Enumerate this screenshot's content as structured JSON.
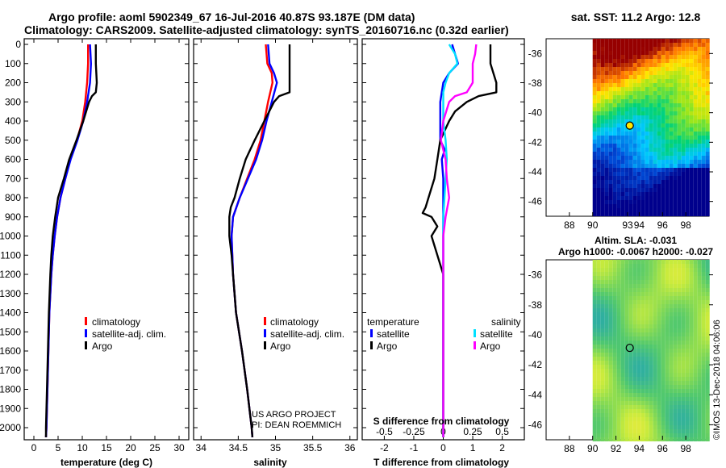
{
  "title_line1": "Argo profile: aoml 5902349_67 16-Jul-2016 40.87S 93.187E (DM data)",
  "title_line2": "Climatology: CARS2009. Satellite-adjusted climatology: synTS_20160716.nc (0.32d earlier)",
  "depth_ticks": [
    "0",
    "100",
    "200",
    "300",
    "400",
    "500",
    "600",
    "700",
    "800",
    "900",
    "1000",
    "1100",
    "1200",
    "1300",
    "1400",
    "1500",
    "1600",
    "1700",
    "1800",
    "1900",
    "2000"
  ],
  "colors": {
    "climatology": "#ff0000",
    "satellite": "#0000ff",
    "argo": "#000000",
    "salinity_sat": "#00e0ff",
    "salinity_argo": "#ff00ff"
  },
  "chart_data": [
    {
      "type": "line",
      "name": "temperature",
      "xlabel": "temperature (deg C)",
      "xlim": [
        -2,
        32
      ],
      "ylim": [
        0,
        2050
      ],
      "x_ticks": [
        "0",
        "5",
        "10",
        "15",
        "20",
        "25",
        "30"
      ],
      "legend": [
        "climatology",
        "satellite-adj. clim.",
        "Argo"
      ],
      "series": [
        {
          "name": "climatology",
          "depth": [
            0,
            50,
            100,
            200,
            300,
            400,
            500,
            600,
            700,
            800,
            900,
            1000,
            1100,
            1200,
            1400,
            1600,
            1800,
            2000,
            2050
          ],
          "values": [
            11.2,
            11.2,
            11.2,
            11.0,
            10.6,
            10.0,
            8.9,
            7.5,
            6.5,
            5.5,
            4.8,
            4.3,
            3.9,
            3.6,
            3.2,
            3.0,
            2.8,
            2.6,
            2.5
          ]
        },
        {
          "name": "satellite-adj. clim.",
          "depth": [
            0,
            50,
            100,
            200,
            300,
            400,
            500,
            600,
            700,
            800,
            900,
            1000,
            1100,
            1200,
            1400,
            1600,
            1800,
            2000,
            2050
          ],
          "values": [
            11.6,
            11.7,
            11.8,
            11.6,
            11.0,
            10.2,
            9.0,
            7.6,
            6.5,
            5.5,
            4.8,
            4.3,
            3.9,
            3.6,
            3.2,
            3.0,
            2.8,
            2.6,
            2.5
          ]
        },
        {
          "name": "Argo",
          "depth": [
            0,
            50,
            100,
            200,
            250,
            270,
            300,
            350,
            400,
            500,
            600,
            700,
            800,
            900,
            1000,
            1100,
            1200,
            1400,
            1600,
            1800,
            2000,
            2050
          ],
          "values": [
            12.8,
            12.8,
            12.8,
            13.0,
            12.8,
            12.0,
            11.4,
            10.8,
            10.2,
            8.8,
            7.3,
            6.2,
            5.0,
            4.4,
            3.9,
            3.6,
            3.4,
            3.1,
            2.9,
            2.7,
            2.5,
            2.5
          ]
        }
      ]
    },
    {
      "type": "line",
      "name": "salinity",
      "xlabel": "salinity",
      "xlim": [
        33.9,
        36.1
      ],
      "ylim": [
        0,
        2050
      ],
      "x_ticks": [
        "34",
        "34.5",
        "35",
        "35.5",
        "36"
      ],
      "legend": [
        "climatology",
        "satellite-adj. clim.",
        "Argo"
      ],
      "series": [
        {
          "name": "climatology",
          "depth": [
            0,
            100,
            150,
            200,
            300,
            400,
            500,
            600,
            700,
            800,
            900,
            1000,
            1200,
            1400,
            1600,
            1800,
            2000,
            2050
          ],
          "values": [
            34.87,
            34.89,
            34.95,
            34.96,
            34.9,
            34.85,
            34.8,
            34.72,
            34.62,
            34.52,
            34.43,
            34.41,
            34.43,
            34.47,
            34.55,
            34.62,
            34.68,
            34.69
          ]
        },
        {
          "name": "satellite-adj. clim.",
          "depth": [
            0,
            100,
            150,
            200,
            300,
            400,
            500,
            600,
            700,
            800,
            900,
            1000,
            1200,
            1400,
            1600,
            1800,
            2000,
            2050
          ],
          "values": [
            34.9,
            34.92,
            34.98,
            35.02,
            34.95,
            34.88,
            34.82,
            34.74,
            34.63,
            34.52,
            34.43,
            34.41,
            34.43,
            34.47,
            34.55,
            34.62,
            34.68,
            34.69
          ]
        },
        {
          "name": "Argo",
          "depth": [
            0,
            100,
            200,
            250,
            270,
            300,
            400,
            500,
            600,
            700,
            800,
            850,
            900,
            1000,
            1100,
            1200,
            1400,
            1600,
            1800,
            2000,
            2050
          ],
          "values": [
            35.19,
            35.19,
            35.19,
            35.19,
            35.05,
            34.98,
            34.85,
            34.72,
            34.6,
            34.52,
            34.45,
            34.4,
            34.38,
            34.38,
            34.41,
            34.43,
            34.47,
            34.55,
            34.62,
            34.68,
            34.69
          ]
        }
      ],
      "annotations": [
        "US ARGO PROJECT",
        "PI: DEAN ROEMMICH"
      ]
    },
    {
      "type": "line",
      "name": "differences",
      "xlabel": "T difference from climatology",
      "xlabel_top": "S difference from climatology",
      "xlim": [
        -2.75,
        2.75
      ],
      "ylim": [
        0,
        2050
      ],
      "x_ticks": [
        "-2",
        "-1",
        "0",
        "1",
        "2"
      ],
      "x_ticks_top": [
        "-0.5",
        "-0.25",
        "0",
        "0.25",
        "0.5"
      ],
      "legend_titles": [
        "temperature",
        "salinity"
      ],
      "legend": [
        "satellite",
        "Argo",
        "satellite",
        "Argo"
      ],
      "series": [
        {
          "name": "temperature satellite",
          "depth": [
            0,
            50,
            100,
            150,
            200,
            300,
            400,
            500,
            550,
            600,
            700,
            800,
            900,
            1000,
            1200,
            1400,
            1600,
            1800,
            2000,
            2050
          ],
          "values": [
            0.3,
            0.4,
            0.5,
            0.2,
            0.0,
            -0.1,
            -0.1,
            -0.1,
            0.05,
            -0.05,
            0.0,
            0.0,
            0.0,
            0.0,
            0.0,
            0.0,
            0.0,
            0.0,
            0.0,
            0.0
          ]
        },
        {
          "name": "temperature Argo",
          "depth": [
            0,
            100,
            200,
            250,
            270,
            300,
            350,
            400,
            500,
            600,
            700,
            800,
            850,
            880,
            900,
            950,
            1000,
            1100,
            1200,
            1400,
            1600,
            1800,
            2000,
            2050
          ],
          "values": [
            1.6,
            1.6,
            1.8,
            1.8,
            1.2,
            0.8,
            0.4,
            0.2,
            -0.1,
            -0.2,
            -0.3,
            -0.5,
            -0.6,
            -0.7,
            -0.4,
            -0.2,
            -0.4,
            -0.2,
            0.0,
            0.0,
            0.0,
            0.0,
            0.0,
            0.0
          ]
        },
        {
          "name": "salinity satellite",
          "depth": [
            0,
            50,
            100,
            150,
            200,
            250,
            300,
            400,
            500,
            600,
            700,
            800,
            900,
            1000,
            1200,
            1400,
            1600,
            1800,
            2000,
            2050
          ],
          "values": [
            0.05,
            0.1,
            0.12,
            0.05,
            0.02,
            0.0,
            0.0,
            0.0,
            0.02,
            0.03,
            0.02,
            0.01,
            0.0,
            0.0,
            0.0,
            0.0,
            0.0,
            0.0,
            0.0,
            0.0
          ]
        },
        {
          "name": "salinity Argo",
          "depth": [
            0,
            50,
            100,
            200,
            250,
            270,
            300,
            400,
            500,
            600,
            700,
            800,
            900,
            1000,
            1100,
            1200,
            1400,
            1600,
            1800,
            2000,
            2050
          ],
          "values": [
            0.28,
            0.27,
            0.25,
            0.25,
            0.2,
            0.1,
            0.05,
            0.0,
            -0.02,
            0.02,
            0.03,
            0.05,
            0.02,
            0.0,
            0.0,
            0.0,
            0.0,
            0.0,
            0.0,
            0.0,
            0.0
          ]
        }
      ]
    },
    {
      "type": "heatmap",
      "name": "sst-map",
      "title": "sat. SST: 11.2 Argo: 12.8",
      "x_ticks": [
        "88",
        "90",
        "93",
        "94",
        "96",
        "98"
      ],
      "y_ticks": [
        "-36",
        "-38",
        "-40",
        "-42",
        "-44",
        "-46"
      ],
      "profile_lon": 93.187,
      "profile_lat": -40.87
    },
    {
      "type": "heatmap",
      "name": "sla-map",
      "title": "Altim. SLA: -0.031",
      "subtitle": "Argo h1000: -0.0067 h2000: -0.027",
      "x_ticks": [
        "88",
        "90",
        "92",
        "94",
        "96",
        "98"
      ],
      "y_ticks": [
        "-36",
        "-38",
        "-40",
        "-42",
        "-44",
        "-46"
      ],
      "profile_lon": 93.187,
      "profile_lat": -40.87
    }
  ],
  "credit": "©IMOS 13-Dec-2018 04:06:06"
}
